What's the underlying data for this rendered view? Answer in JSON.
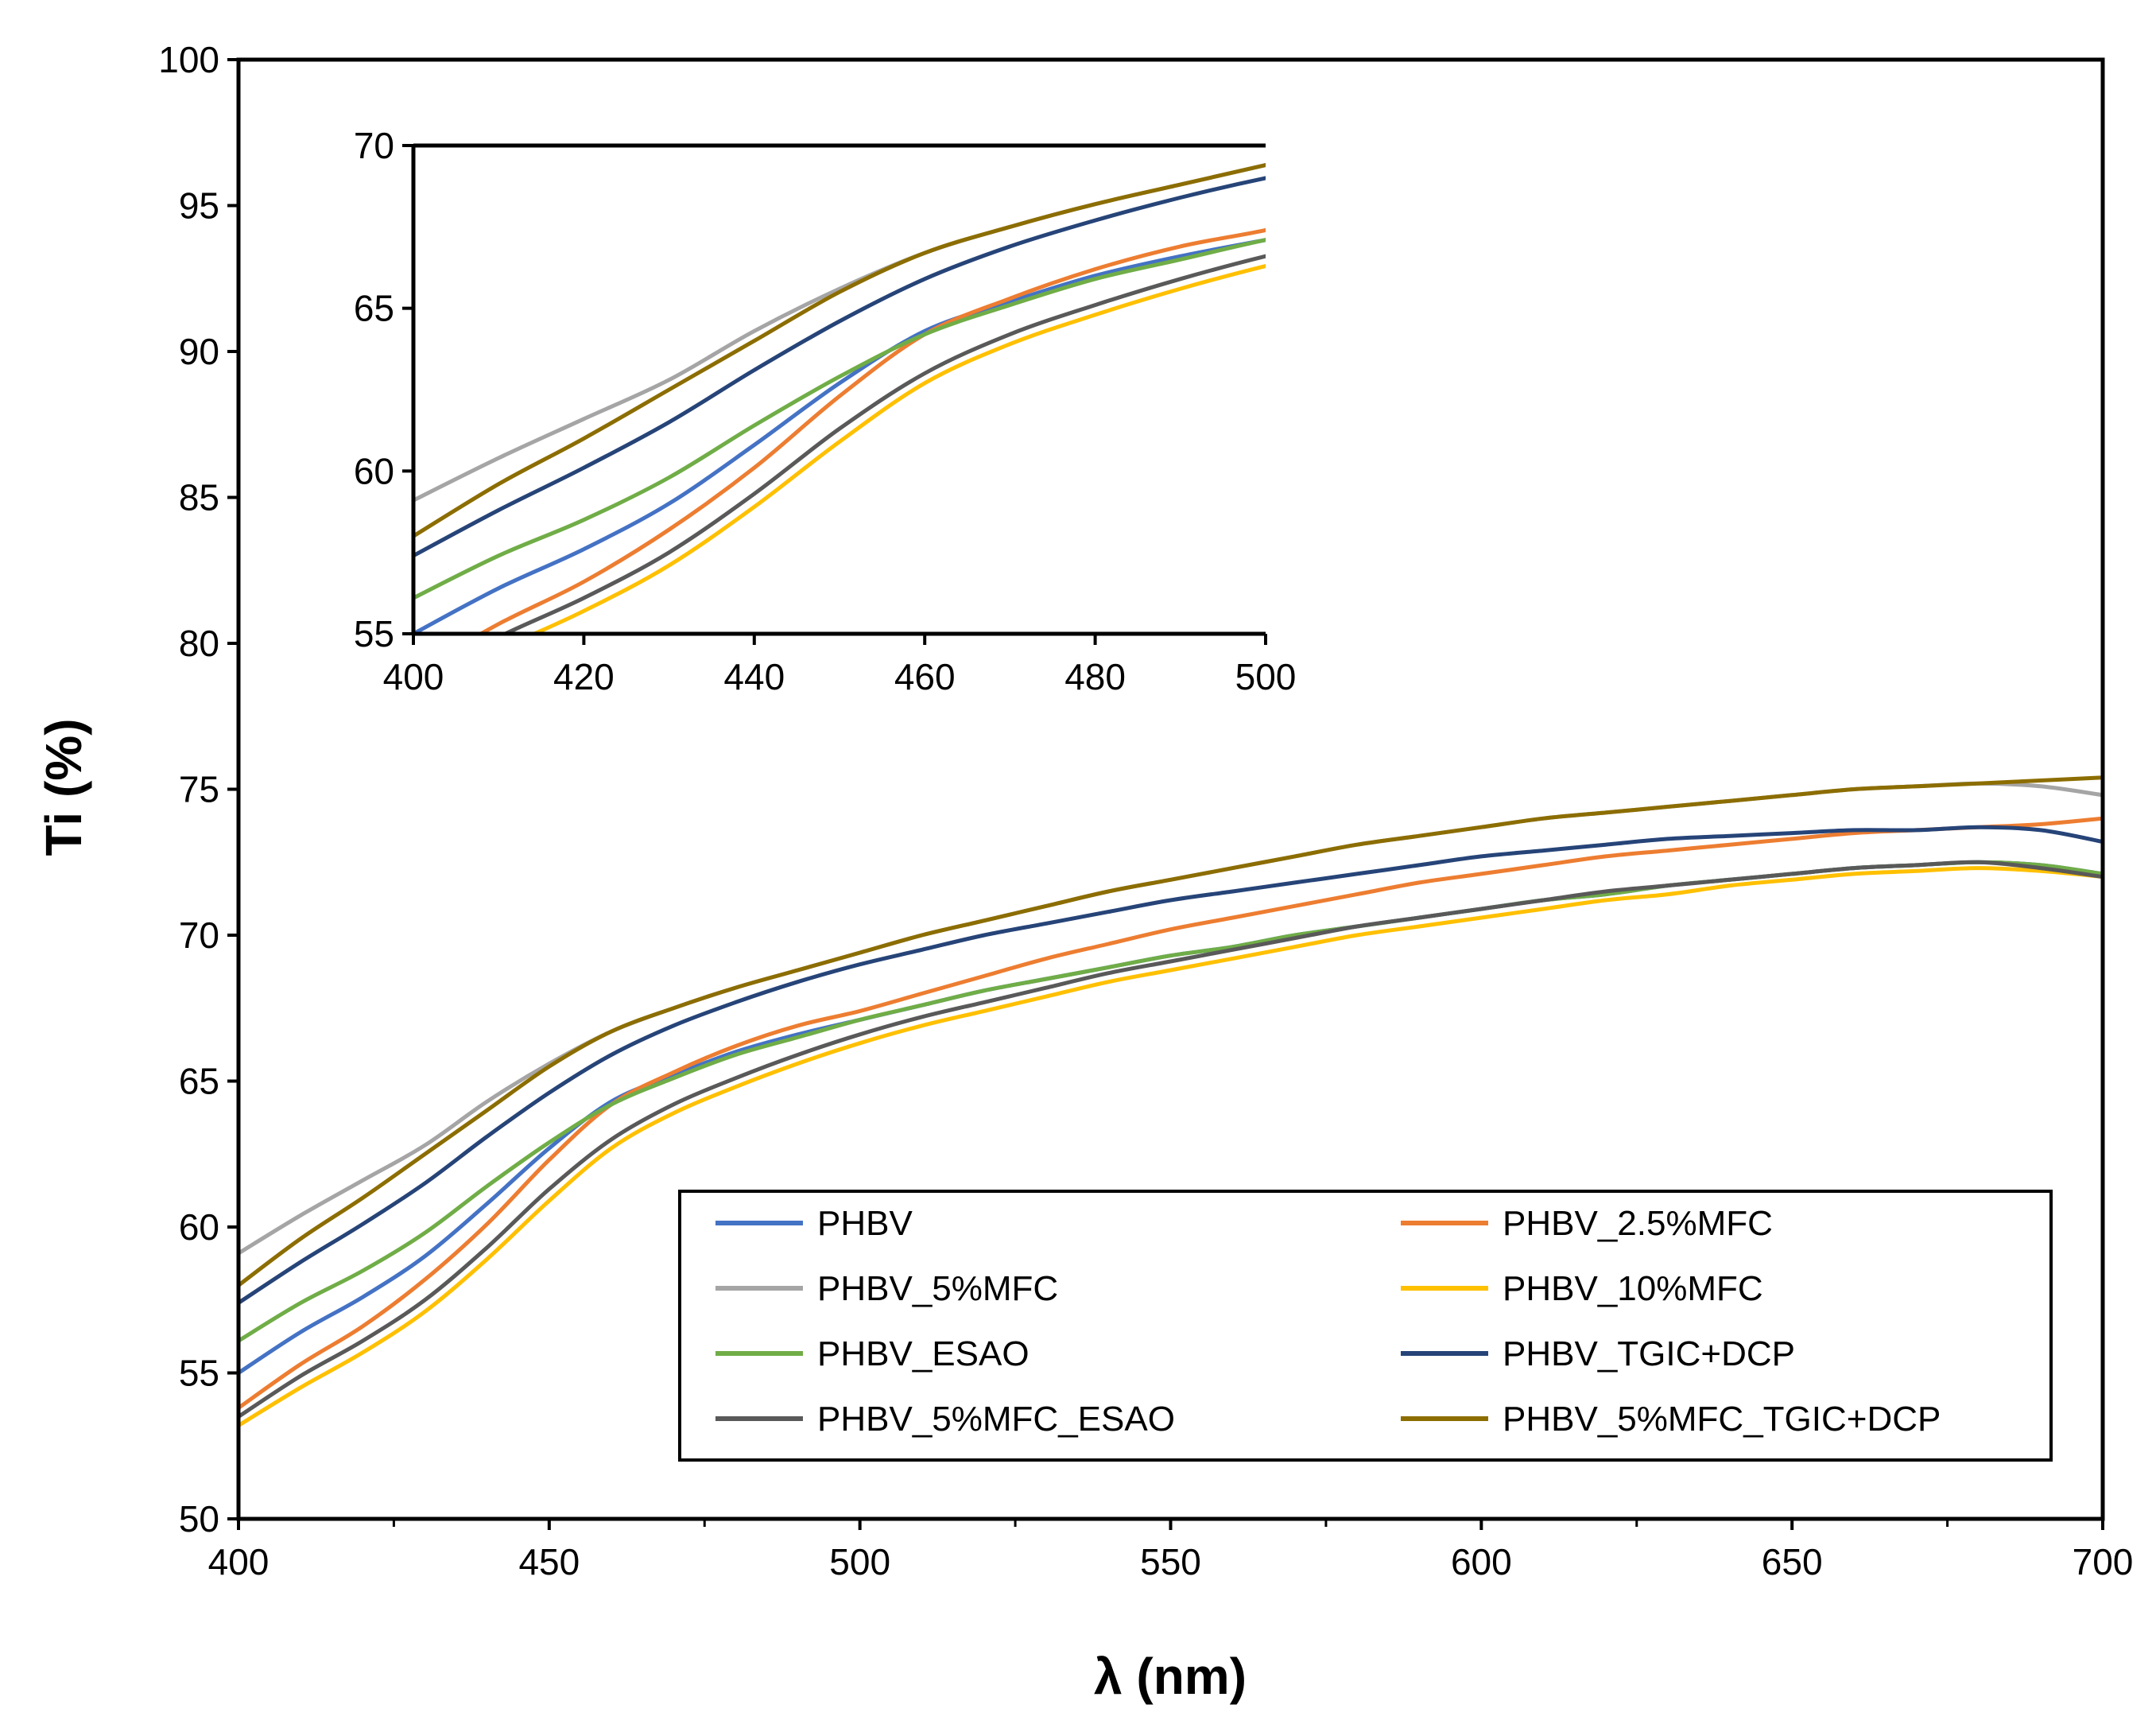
{
  "chart_data": {
    "type": "line",
    "title": "",
    "xlabel": "λ (nm)",
    "ylabel": "Ti (%)",
    "xlim": [
      400,
      700
    ],
    "ylim": [
      50,
      100
    ],
    "xticks": [
      400,
      450,
      500,
      550,
      600,
      650,
      700
    ],
    "yticks": [
      50,
      55,
      60,
      65,
      70,
      75,
      80,
      85,
      90,
      95,
      100
    ],
    "grid": false,
    "legend_position": "bottom-right",
    "x": [
      400,
      410,
      420,
      430,
      440,
      450,
      460,
      470,
      480,
      490,
      500,
      510,
      520,
      530,
      540,
      550,
      560,
      570,
      580,
      590,
      600,
      610,
      620,
      630,
      640,
      650,
      660,
      670,
      680,
      690,
      700
    ],
    "series": [
      {
        "name": "PHBV",
        "color": "#4472C4",
        "values": [
          55.0,
          56.4,
          57.6,
          59.0,
          60.8,
          62.7,
          64.3,
          65.2,
          66.0,
          66.6,
          67.1,
          67.6,
          68.1,
          68.5,
          68.9,
          69.3,
          69.6,
          70.0,
          70.3,
          70.6,
          70.9,
          71.2,
          71.4,
          71.7,
          71.9,
          72.1,
          72.3,
          72.4,
          72.5,
          72.4,
          72.1
        ]
      },
      {
        "name": "PHBV_2.5%MFC",
        "color": "#ED7D31",
        "values": [
          53.8,
          55.3,
          56.6,
          58.2,
          60.1,
          62.3,
          64.2,
          65.3,
          66.2,
          66.9,
          67.4,
          68.0,
          68.6,
          69.2,
          69.7,
          70.2,
          70.6,
          71.0,
          71.4,
          71.8,
          72.1,
          72.4,
          72.7,
          72.9,
          73.1,
          73.3,
          73.5,
          73.6,
          73.7,
          73.8,
          74.0
        ]
      },
      {
        "name": "PHBV_5%MFC",
        "color": "#A5A5A5",
        "values": [
          59.1,
          60.4,
          61.6,
          62.8,
          64.3,
          65.6,
          66.7,
          67.5,
          68.2,
          68.8,
          69.4,
          70.0,
          70.5,
          71.0,
          71.5,
          71.9,
          72.3,
          72.7,
          73.1,
          73.4,
          73.7,
          74.0,
          74.2,
          74.4,
          74.6,
          74.8,
          75.0,
          75.1,
          75.2,
          75.1,
          74.8
        ]
      },
      {
        "name": "PHBV_10%MFC",
        "color": "#FFC000",
        "values": [
          53.2,
          54.5,
          55.7,
          57.1,
          58.9,
          60.9,
          62.7,
          63.9,
          64.8,
          65.6,
          66.3,
          66.9,
          67.4,
          67.9,
          68.4,
          68.8,
          69.2,
          69.6,
          70.0,
          70.3,
          70.6,
          70.9,
          71.2,
          71.4,
          71.7,
          71.9,
          72.1,
          72.2,
          72.3,
          72.2,
          72.0
        ]
      },
      {
        "name": "PHBV_ESAO",
        "color": "#70AD47",
        "values": [
          56.1,
          57.4,
          58.5,
          59.8,
          61.4,
          62.9,
          64.2,
          65.1,
          65.9,
          66.5,
          67.1,
          67.6,
          68.1,
          68.5,
          68.9,
          69.3,
          69.6,
          70.0,
          70.3,
          70.6,
          70.9,
          71.2,
          71.4,
          71.7,
          71.9,
          72.1,
          72.3,
          72.4,
          72.5,
          72.4,
          72.1
        ]
      },
      {
        "name": "PHBV_TGIC+DCP",
        "color": "#264478",
        "values": [
          57.4,
          58.8,
          60.1,
          61.5,
          63.1,
          64.6,
          65.9,
          66.9,
          67.7,
          68.4,
          69.0,
          69.5,
          70.0,
          70.4,
          70.8,
          71.2,
          71.5,
          71.8,
          72.1,
          72.4,
          72.7,
          72.9,
          73.1,
          73.3,
          73.4,
          73.5,
          73.6,
          73.6,
          73.7,
          73.6,
          73.2
        ]
      },
      {
        "name": "PHBV_5%MFC_ESAO",
        "color": "#595959",
        "values": [
          53.5,
          54.9,
          56.1,
          57.5,
          59.3,
          61.3,
          63.0,
          64.2,
          65.1,
          65.9,
          66.6,
          67.2,
          67.7,
          68.2,
          68.7,
          69.1,
          69.5,
          69.9,
          70.3,
          70.6,
          70.9,
          71.2,
          71.5,
          71.7,
          71.9,
          72.1,
          72.3,
          72.4,
          72.5,
          72.3,
          72.0
        ]
      },
      {
        "name": "PHBV_5%MFC_TGIC+DCP",
        "color": "#8C6D00",
        "values": [
          58.0,
          59.6,
          61.0,
          62.5,
          64.0,
          65.5,
          66.7,
          67.5,
          68.2,
          68.8,
          69.4,
          70.0,
          70.5,
          71.0,
          71.5,
          71.9,
          72.3,
          72.7,
          73.1,
          73.4,
          73.7,
          74.0,
          74.2,
          74.4,
          74.6,
          74.8,
          75.0,
          75.1,
          75.2,
          75.3,
          75.4
        ]
      }
    ],
    "inset": {
      "xlim": [
        400,
        500
      ],
      "ylim": [
        55,
        70
      ],
      "xticks": [
        400,
        420,
        440,
        460,
        480,
        500
      ],
      "yticks": [
        55,
        60,
        65,
        70
      ]
    }
  }
}
